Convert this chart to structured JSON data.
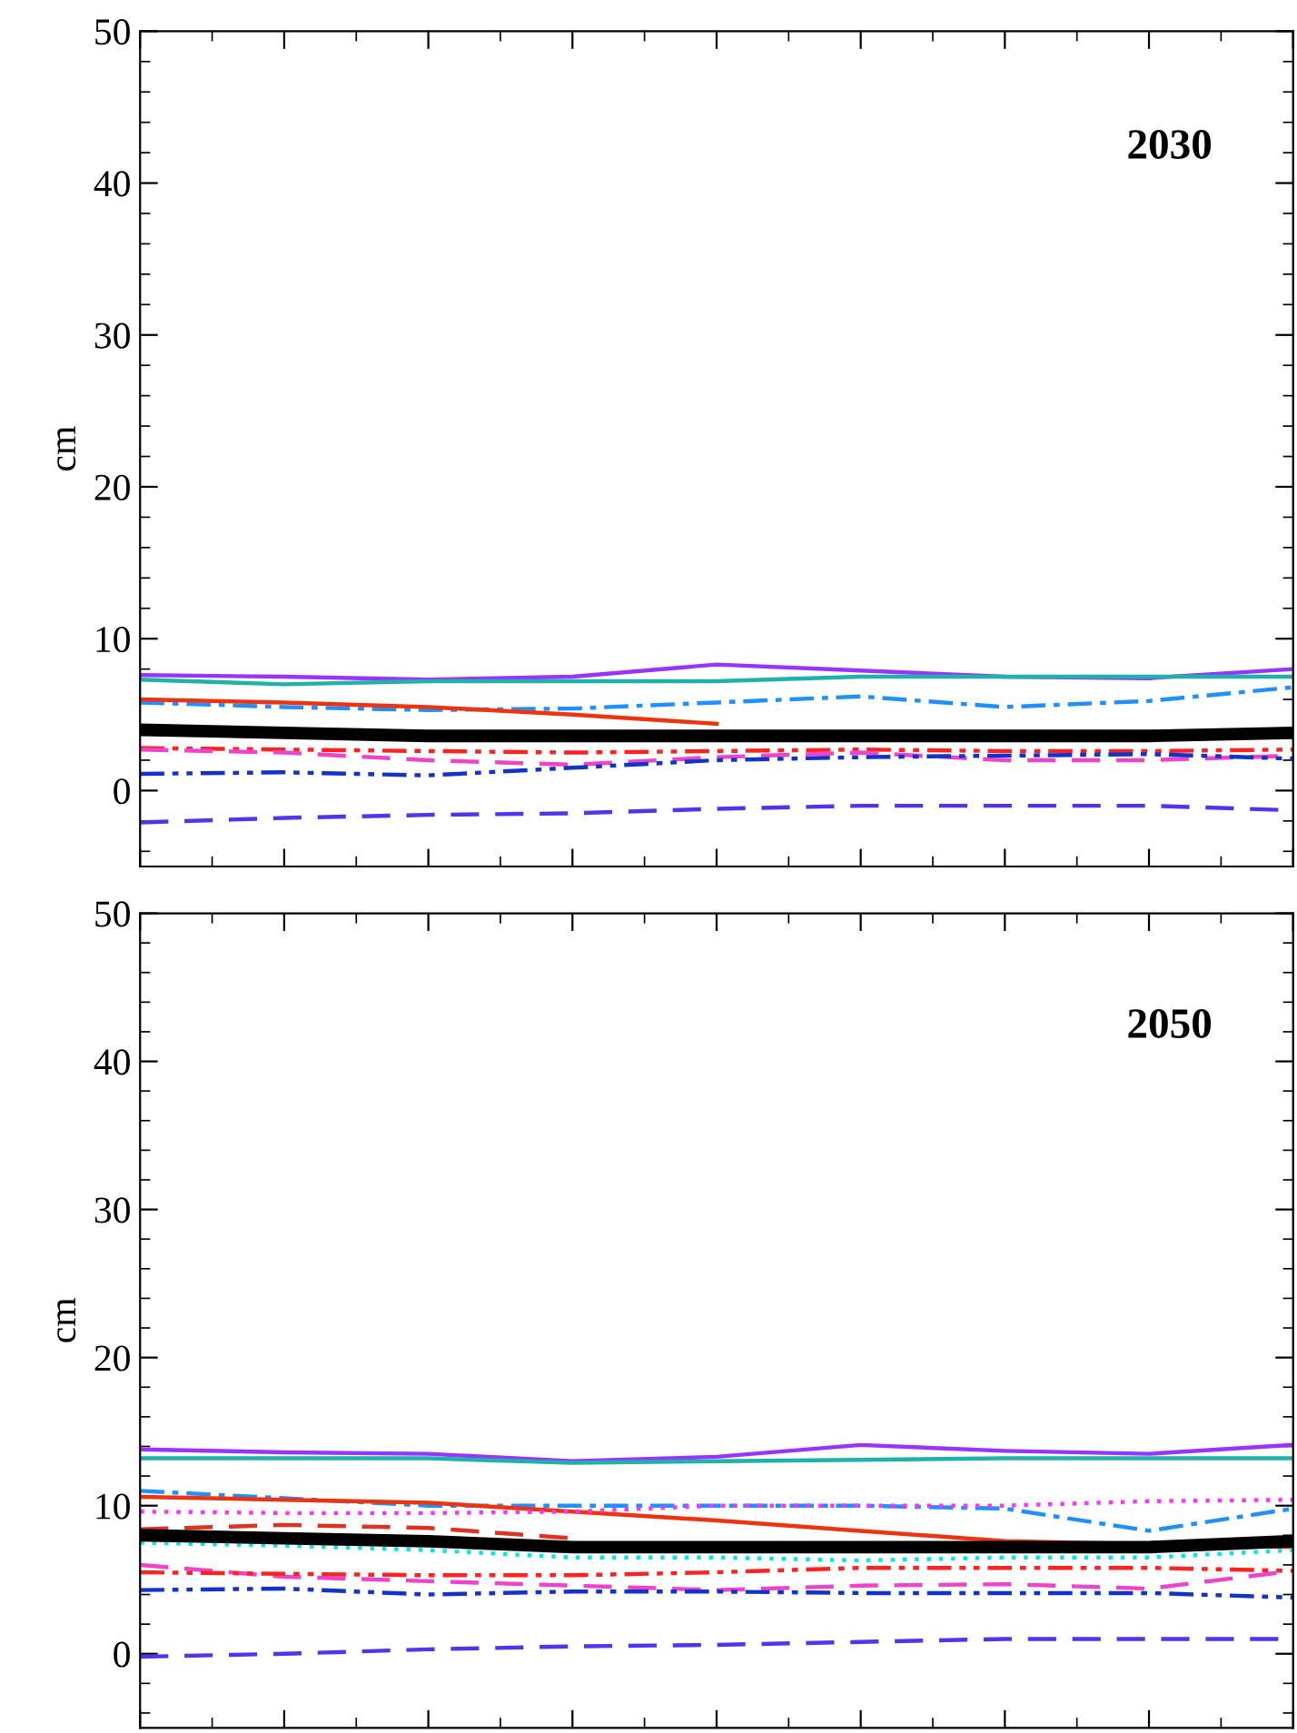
{
  "chart_data": [
    {
      "type": "line",
      "ylabel": "cm",
      "annotations": [
        "2030"
      ],
      "categories": [
        null,
        null,
        null,
        null,
        null,
        null,
        null,
        null,
        null
      ],
      "ylim": [
        -5,
        50
      ],
      "yticks": [
        0,
        10,
        20,
        30,
        40,
        50
      ],
      "tick_labels": "y",
      "grid": false,
      "marker": "none",
      "series": [
        {
          "color": "#9933ff",
          "line_style": "solid",
          "values": [
            7.6,
            7.5,
            7.3,
            7.5,
            8.3,
            7.9,
            7.5,
            7.4,
            8.0
          ]
        },
        {
          "color": "#20b2aa",
          "line_style": "solid",
          "values": [
            7.3,
            7.0,
            7.2,
            7.2,
            7.2,
            7.5,
            7.5,
            7.5,
            7.5
          ]
        },
        {
          "color": "#1e90ff",
          "line_style": "dashdot",
          "values": [
            5.8,
            5.5,
            5.3,
            5.4,
            5.8,
            6.2,
            5.5,
            5.9,
            6.8
          ]
        },
        {
          "color": "#ee3311",
          "line_style": "solid",
          "values": [
            6.0,
            5.8,
            5.5,
            5.0,
            4.4,
            null,
            null,
            null,
            null
          ]
        },
        {
          "color": "#000000",
          "line_style": "solid",
          "values": [
            4.0,
            3.8,
            3.6,
            3.6,
            3.6,
            3.6,
            3.6,
            3.6,
            3.8
          ]
        },
        {
          "color": "#ff2222",
          "line_style": "dashdotdot",
          "values": [
            2.8,
            2.7,
            2.6,
            2.5,
            2.6,
            2.7,
            2.6,
            2.6,
            2.7
          ]
        },
        {
          "color": "#ee44cc",
          "line_style": "dashed",
          "values": [
            2.7,
            2.5,
            2.0,
            1.7,
            2.2,
            2.5,
            2.0,
            2.0,
            2.3
          ]
        },
        {
          "color": "#1133cc",
          "line_style": "dashdotdot",
          "values": [
            1.1,
            1.2,
            1.0,
            1.5,
            2.0,
            2.2,
            2.3,
            2.4,
            2.1
          ]
        },
        {
          "color": "#5533ee",
          "line_style": "dashed",
          "values": [
            -2.1,
            -1.8,
            -1.6,
            -1.5,
            -1.2,
            -1.0,
            -1.0,
            -1.0,
            -1.3
          ]
        }
      ]
    },
    {
      "type": "line",
      "ylabel": "cm",
      "annotations": [
        "2050"
      ],
      "categories": [
        null,
        null,
        null,
        null,
        null,
        null,
        null,
        null,
        null
      ],
      "ylim": [
        -5,
        50
      ],
      "yticks": [
        0,
        10,
        20,
        30,
        40,
        50
      ],
      "tick_labels": "y",
      "grid": false,
      "marker": "none",
      "series": [
        {
          "color": "#9933ff",
          "line_style": "solid",
          "values": [
            13.8,
            13.6,
            13.5,
            13.0,
            13.3,
            14.1,
            13.7,
            13.5,
            14.1
          ]
        },
        {
          "color": "#20b2aa",
          "line_style": "solid",
          "values": [
            13.2,
            13.2,
            13.2,
            12.9,
            13.0,
            13.1,
            13.2,
            13.2,
            13.2
          ]
        },
        {
          "color": "#1e90ff",
          "line_style": "dashdot",
          "values": [
            11.0,
            10.5,
            10.0,
            10.0,
            10.0,
            10.0,
            9.8,
            8.3,
            9.8
          ]
        },
        {
          "color": "#ee3311",
          "line_style": "solid",
          "values": [
            10.6,
            10.4,
            10.2,
            9.6,
            9.0,
            8.3,
            7.6,
            7.4,
            7.2
          ]
        },
        {
          "color": "#ff33ff",
          "line_style": "dotted",
          "values": [
            9.6,
            9.5,
            9.5,
            9.6,
            10.0,
            10.0,
            10.0,
            10.3,
            10.4
          ]
        },
        {
          "color": "#dd3322",
          "line_style": "dashed",
          "values": [
            8.4,
            8.7,
            8.5,
            7.8,
            null,
            null,
            null,
            null,
            null
          ]
        },
        {
          "color": "#00e5ee",
          "line_style": "dotted",
          "values": [
            7.5,
            7.3,
            7.0,
            6.5,
            6.5,
            6.3,
            6.5,
            6.5,
            7.0
          ]
        },
        {
          "color": "#000000",
          "line_style": "solid",
          "values": [
            8.0,
            7.8,
            7.6,
            7.2,
            7.2,
            7.2,
            7.2,
            7.2,
            7.6
          ]
        },
        {
          "color": "#ee44cc",
          "line_style": "dashed",
          "values": [
            6.0,
            5.2,
            4.9,
            4.6,
            4.3,
            4.6,
            4.7,
            4.4,
            5.6
          ]
        },
        {
          "color": "#ff2222",
          "line_style": "dashdotdot",
          "values": [
            5.5,
            5.4,
            5.3,
            5.3,
            5.5,
            5.8,
            5.8,
            5.8,
            5.6
          ]
        },
        {
          "color": "#1133cc",
          "line_style": "dashdotdot",
          "values": [
            4.3,
            4.4,
            4.0,
            4.2,
            4.2,
            4.1,
            4.1,
            4.1,
            3.8
          ]
        },
        {
          "color": "#5533ee",
          "line_style": "dashed",
          "values": [
            -0.2,
            0.0,
            0.3,
            0.5,
            0.6,
            0.8,
            1.0,
            1.0,
            1.0
          ]
        }
      ]
    }
  ]
}
